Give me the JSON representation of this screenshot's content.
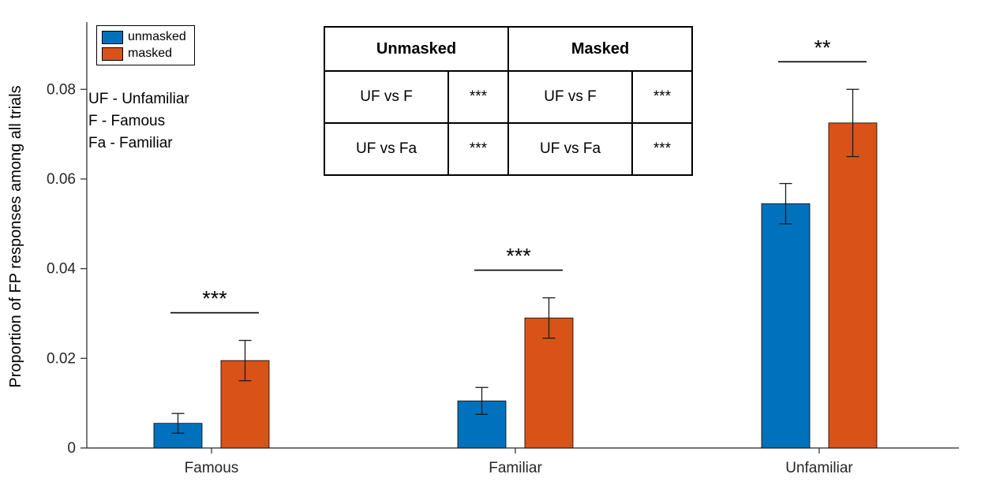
{
  "chart_data": {
    "type": "bar",
    "title": "",
    "ylabel": "Proportion of FP responses among all trials",
    "xlabel": "",
    "ylim": [
      0,
      0.095
    ],
    "yticks": [
      0,
      0.02,
      0.04,
      0.06,
      0.08
    ],
    "ytick_labels": [
      "0",
      "0.02",
      "0.04",
      "0.06",
      "0.08"
    ],
    "categories": [
      "Famous",
      "Familiar",
      "Unfamiliar"
    ],
    "series": [
      {
        "name": "unmasked",
        "color": "#0072BD",
        "values": [
          0.0055,
          0.0105,
          0.0545
        ],
        "errors": [
          0.0022,
          0.003,
          0.0045
        ]
      },
      {
        "name": "masked",
        "color": "#D95319",
        "values": [
          0.0195,
          0.029,
          0.0725
        ],
        "errors": [
          0.0045,
          0.0045,
          0.0075
        ]
      }
    ],
    "significance": [
      {
        "category": "Famous",
        "stars": "***"
      },
      {
        "category": "Familiar",
        "stars": "***"
      },
      {
        "category": "Unfamiliar",
        "stars": "**"
      }
    ],
    "legend_position": "top-left",
    "grid": false
  },
  "abbreviations": [
    "UF - Unfamiliar",
    "F - Famous",
    "Fa - Familiar"
  ],
  "sig_table": {
    "headers": [
      "Unmasked",
      "Masked"
    ],
    "rows": [
      [
        "UF vs F",
        "***",
        "UF vs F",
        "***"
      ],
      [
        "UF vs Fa",
        "***",
        "UF vs Fa",
        "***"
      ]
    ]
  }
}
